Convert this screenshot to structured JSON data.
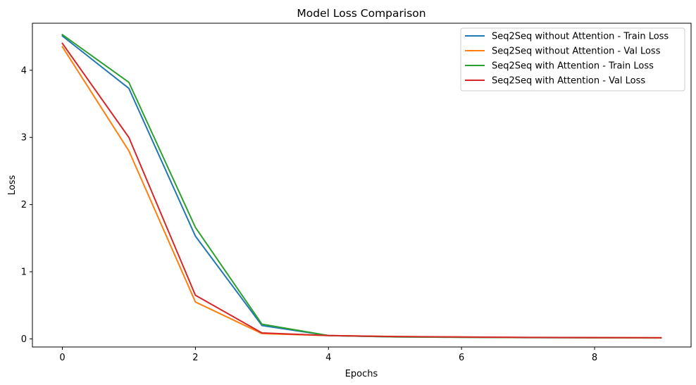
{
  "chart_data": {
    "type": "line",
    "title": "Model Loss Comparison",
    "xlabel": "Epochs",
    "ylabel": "Loss",
    "xlim": [
      -0.45,
      9.45
    ],
    "ylim": [
      -0.12,
      4.7
    ],
    "xticks": [
      0,
      2,
      4,
      6,
      8
    ],
    "yticks": [
      0,
      1,
      2,
      3,
      4
    ],
    "grid": false,
    "legend_position": "top-right",
    "x": [
      0,
      1,
      2,
      3,
      4,
      5,
      6,
      7,
      8,
      9
    ],
    "series": [
      {
        "name": "Seq2Seq without Attention - Train Loss",
        "color": "#1f77b4",
        "values": [
          4.51,
          3.73,
          1.53,
          0.2,
          0.05,
          0.03,
          0.025,
          0.02,
          0.018,
          0.016
        ]
      },
      {
        "name": "Seq2Seq without Attention - Val Loss",
        "color": "#ff7f0e",
        "values": [
          4.35,
          2.8,
          0.55,
          0.08,
          0.05,
          0.035,
          0.028,
          0.022,
          0.019,
          0.017
        ]
      },
      {
        "name": "Seq2Seq with Attention - Train Loss",
        "color": "#2ca02c",
        "values": [
          4.53,
          3.82,
          1.66,
          0.22,
          0.05,
          0.03,
          0.024,
          0.02,
          0.017,
          0.015
        ]
      },
      {
        "name": "Seq2Seq with Attention - Val Loss",
        "color": "#d62728",
        "values": [
          4.4,
          3.0,
          0.65,
          0.09,
          0.05,
          0.036,
          0.029,
          0.023,
          0.02,
          0.018
        ]
      }
    ]
  }
}
